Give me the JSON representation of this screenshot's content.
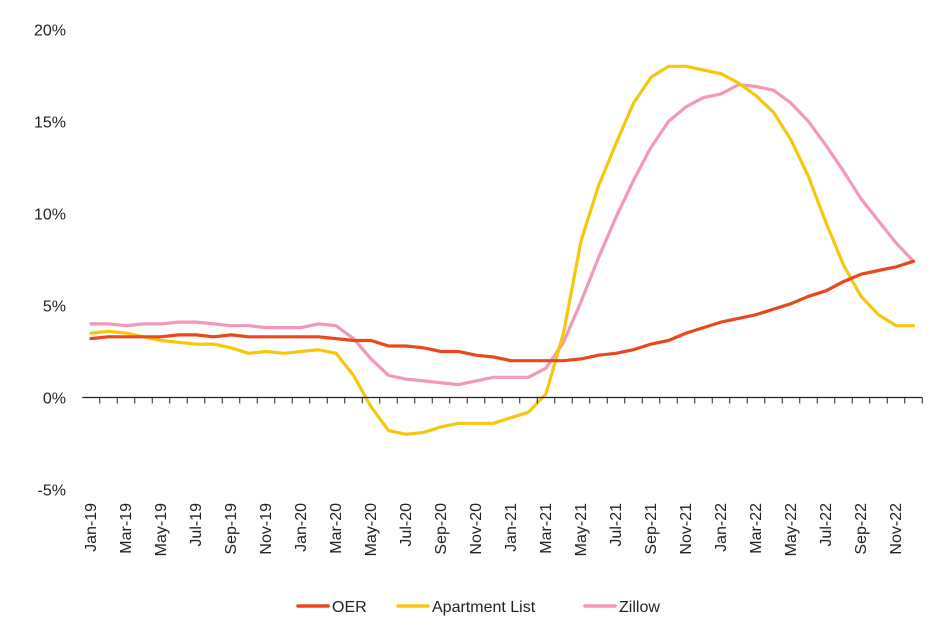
{
  "chart_data": {
    "type": "line",
    "title": "",
    "xlabel": "",
    "ylabel": "",
    "ylim": [
      -5,
      20
    ],
    "yticks": [
      "20%",
      "15%",
      "10%",
      "5%",
      "0%",
      "-5%"
    ],
    "ytick_values": [
      20,
      15,
      10,
      5,
      0,
      -5
    ],
    "x": [
      "Jan-19",
      "Feb-19",
      "Mar-19",
      "Apr-19",
      "May-19",
      "Jun-19",
      "Jul-19",
      "Aug-19",
      "Sep-19",
      "Oct-19",
      "Nov-19",
      "Dec-19",
      "Jan-20",
      "Feb-20",
      "Mar-20",
      "Apr-20",
      "May-20",
      "Jun-20",
      "Jul-20",
      "Aug-20",
      "Sep-20",
      "Oct-20",
      "Nov-20",
      "Dec-20",
      "Jan-21",
      "Feb-21",
      "Mar-21",
      "Apr-21",
      "May-21",
      "Jun-21",
      "Jul-21",
      "Aug-21",
      "Sep-21",
      "Oct-21",
      "Nov-21",
      "Dec-21",
      "Jan-22",
      "Feb-22",
      "Mar-22",
      "Apr-22",
      "May-22",
      "Jun-22",
      "Jul-22",
      "Aug-22",
      "Sep-22",
      "Oct-22",
      "Nov-22",
      "Dec-22"
    ],
    "xtick_labels": [
      "Jan-19",
      "Mar-19",
      "May-19",
      "Jul-19",
      "Sep-19",
      "Nov-19",
      "Jan-20",
      "Mar-20",
      "May-20",
      "Jul-20",
      "Sep-20",
      "Nov-20",
      "Jan-21",
      "Mar-21",
      "May-21",
      "Jul-21",
      "Sep-21",
      "Nov-21",
      "Jan-22",
      "Mar-22",
      "May-22",
      "Jul-22",
      "Sep-22",
      "Nov-22"
    ],
    "legend_position": "bottom",
    "grid": false,
    "series": [
      {
        "name": "OER",
        "color": "#E8481C",
        "values": [
          3.2,
          3.3,
          3.3,
          3.3,
          3.3,
          3.4,
          3.4,
          3.3,
          3.4,
          3.3,
          3.3,
          3.3,
          3.3,
          3.3,
          3.2,
          3.1,
          3.1,
          2.8,
          2.8,
          2.7,
          2.5,
          2.5,
          2.3,
          2.2,
          2.0,
          2.0,
          2.0,
          2.0,
          2.1,
          2.3,
          2.4,
          2.6,
          2.9,
          3.1,
          3.5,
          3.8,
          4.1,
          4.3,
          4.5,
          4.8,
          5.1,
          5.5,
          5.8,
          6.3,
          6.7,
          6.9,
          7.1,
          7.4
        ]
      },
      {
        "name": "Apartment List",
        "color": "#F5C70D",
        "values": [
          3.5,
          3.6,
          3.5,
          3.3,
          3.1,
          3.0,
          2.9,
          2.9,
          2.7,
          2.4,
          2.5,
          2.4,
          2.5,
          2.6,
          2.4,
          1.2,
          -0.5,
          -1.8,
          -2.0,
          -1.9,
          -1.6,
          -1.4,
          -1.4,
          -1.4,
          -1.1,
          -0.8,
          0.2,
          3.5,
          8.5,
          11.5,
          13.8,
          16.0,
          17.4,
          18.0,
          18.0,
          17.8,
          17.6,
          17.1,
          16.4,
          15.5,
          14.0,
          12.0,
          9.5,
          7.2,
          5.5,
          4.5,
          3.9,
          3.9
        ]
      },
      {
        "name": "Zillow",
        "color": "#F497B9",
        "values": [
          4.0,
          4.0,
          3.9,
          4.0,
          4.0,
          4.1,
          4.1,
          4.0,
          3.9,
          3.9,
          3.8,
          3.8,
          3.8,
          4.0,
          3.9,
          3.2,
          2.1,
          1.2,
          1.0,
          0.9,
          0.8,
          0.7,
          0.9,
          1.1,
          1.1,
          1.1,
          1.6,
          3.0,
          5.2,
          7.6,
          9.8,
          11.8,
          13.6,
          15.0,
          15.8,
          16.3,
          16.5,
          17.0,
          16.9,
          16.7,
          16.0,
          15.0,
          13.7,
          12.3,
          10.8,
          9.6,
          8.4,
          7.4
        ]
      }
    ]
  }
}
